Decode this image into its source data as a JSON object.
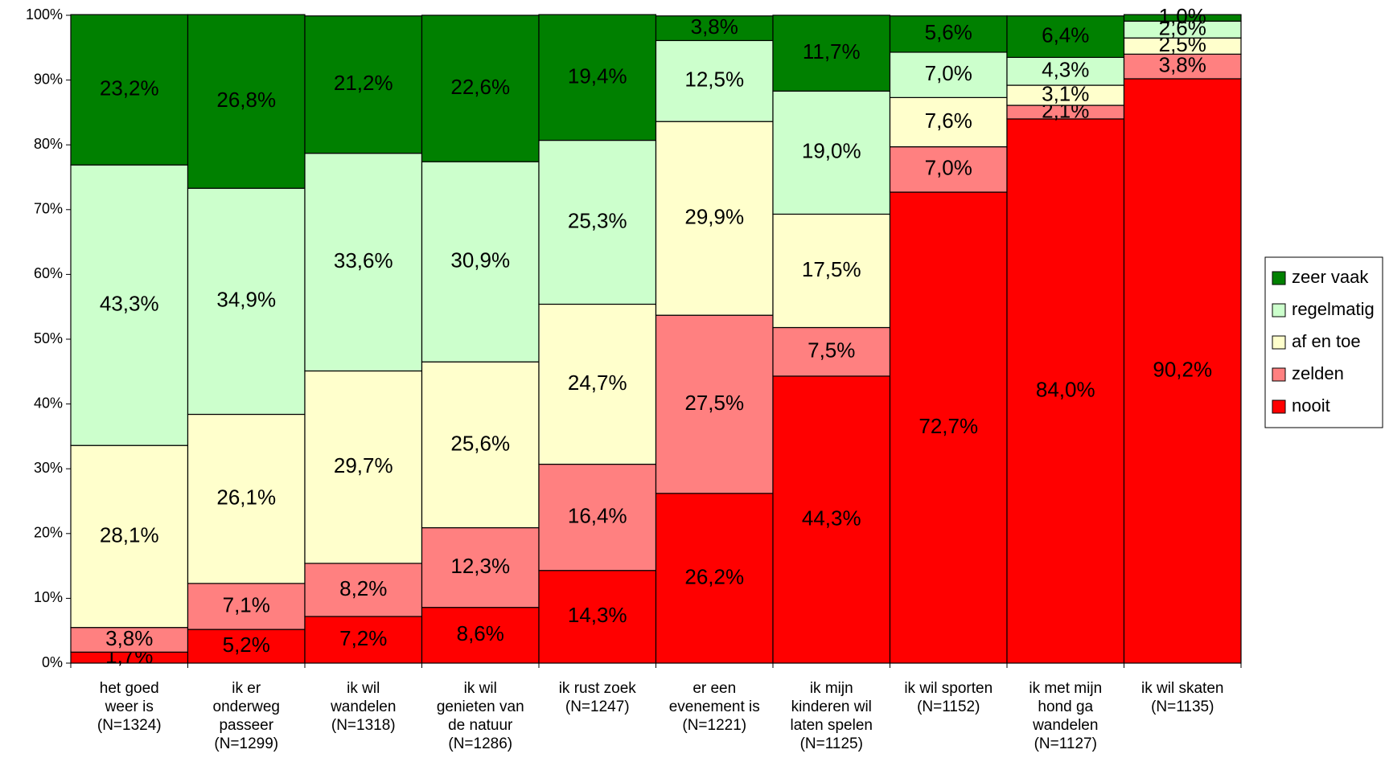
{
  "chart_data": {
    "type": "stacked_bar_percent",
    "categories": [
      [
        "het goed",
        "weer is",
        "(N=1324)"
      ],
      [
        "ik er",
        "onderweg",
        "passeer",
        "(N=1299)"
      ],
      [
        "ik wil",
        "wandelen",
        "(N=1318)"
      ],
      [
        "ik wil",
        "genieten van",
        "de natuur",
        "(N=1286)"
      ],
      [
        "ik rust zoek",
        "(N=1247)"
      ],
      [
        "er een",
        "evenement is",
        "(N=1221)"
      ],
      [
        "ik mijn",
        "kinderen wil",
        "laten spelen",
        "(N=1125)"
      ],
      [
        "ik wil sporten",
        "(N=1152)"
      ],
      [
        "ik met mijn",
        "hond ga",
        "wandelen",
        "(N=1127)"
      ],
      [
        "ik wil skaten",
        "(N=1135)"
      ]
    ],
    "series": [
      {
        "name": "nooit",
        "color": "#ff0000",
        "values": [
          1.7,
          5.2,
          7.2,
          8.6,
          14.3,
          26.2,
          44.3,
          72.7,
          84.0,
          90.2
        ],
        "value_labels": [
          "1,7%",
          "5,2%",
          "7,2%",
          "8,6%",
          "14,3%",
          "26,2%",
          "44,3%",
          "72,7%",
          "84,0%",
          "90,2%"
        ]
      },
      {
        "name": "zelden",
        "color": "#ff8080",
        "values": [
          3.8,
          7.1,
          8.2,
          12.3,
          16.4,
          27.5,
          7.5,
          7.0,
          2.1,
          3.8
        ],
        "value_labels": [
          "3,8%",
          "7,1%",
          "8,2%",
          "12,3%",
          "16,4%",
          "27,5%",
          "7,5%",
          "7,0%",
          "2,1%",
          "3,8%"
        ]
      },
      {
        "name": "af en toe",
        "color": "#ffffcc",
        "values": [
          28.1,
          26.1,
          29.7,
          25.6,
          24.7,
          29.9,
          17.5,
          7.6,
          3.1,
          2.5
        ],
        "value_labels": [
          "28,1%",
          "26,1%",
          "29,7%",
          "25,6%",
          "24,7%",
          "29,9%",
          "17,5%",
          "7,6%",
          "3,1%",
          "2,5%"
        ]
      },
      {
        "name": "regelmatig",
        "color": "#ccffcc",
        "values": [
          43.3,
          34.9,
          33.6,
          30.9,
          25.3,
          12.5,
          19.0,
          7.0,
          4.3,
          2.6
        ],
        "value_labels": [
          "43,3%",
          "34,9%",
          "33,6%",
          "30,9%",
          "25,3%",
          "12,5%",
          "19,0%",
          "7,0%",
          "4,3%",
          "2,6%"
        ]
      },
      {
        "name": "zeer vaak",
        "color": "#008000",
        "values": [
          23.2,
          26.8,
          21.2,
          22.6,
          19.4,
          3.8,
          11.7,
          5.6,
          6.4,
          1.0
        ],
        "value_labels": [
          "23,2%",
          "26,8%",
          "21,2%",
          "22,6%",
          "19,4%",
          "3,8%",
          "11,7%",
          "5,6%",
          "6,4%",
          "1,0%"
        ]
      }
    ],
    "ylim": [
      0,
      100
    ],
    "yticks": [
      {
        "value": 0,
        "label": "0%"
      },
      {
        "value": 10,
        "label": "10%"
      },
      {
        "value": 20,
        "label": "20%"
      },
      {
        "value": 30,
        "label": "30%"
      },
      {
        "value": 40,
        "label": "40%"
      },
      {
        "value": 50,
        "label": "50%"
      },
      {
        "value": 60,
        "label": "60%"
      },
      {
        "value": 70,
        "label": "70%"
      },
      {
        "value": 80,
        "label": "80%"
      },
      {
        "value": 90,
        "label": "90%"
      },
      {
        "value": 100,
        "label": "100%"
      }
    ],
    "legend": "right"
  }
}
